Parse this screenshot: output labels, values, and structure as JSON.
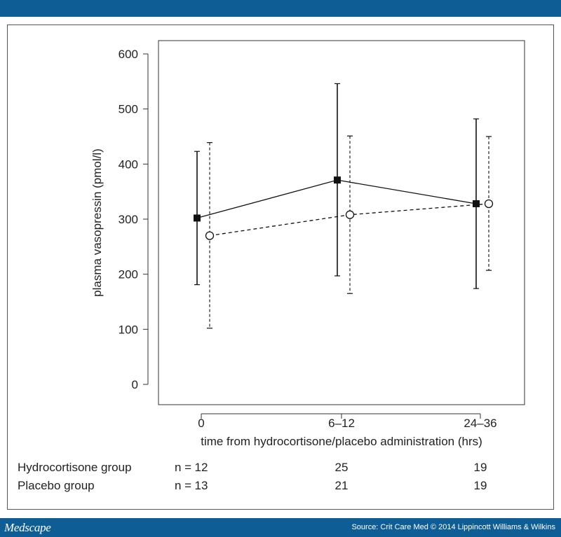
{
  "brand": "Medscape",
  "source": "Source: Crit Care Med © 2014 Lippincott Williams & Wilkins",
  "colors": {
    "header_bar": "#0f5d95",
    "footer_bar": "#0f5d95"
  },
  "chart_data": {
    "type": "line",
    "xlabel": "time from hydrocortisone/placebo administration (hrs)",
    "ylabel": "plasma vasopressin (pmol/l)",
    "categories": [
      "0",
      "6–12",
      "24–36"
    ],
    "ylim": [
      0,
      600
    ],
    "yticks": [
      0,
      100,
      200,
      300,
      400,
      500,
      600
    ],
    "grid": false,
    "series": [
      {
        "marker": "filled-square",
        "line_style": "solid",
        "values": [
          302,
          371,
          328
        ],
        "lower": [
          181,
          197,
          174
        ],
        "upper": [
          423,
          546,
          482
        ]
      },
      {
        "marker": "open-circle",
        "line_style": "dashed",
        "values": [
          270,
          308,
          328
        ],
        "lower": [
          102,
          165,
          207
        ],
        "upper": [
          439,
          451,
          450
        ]
      }
    ],
    "n_table": [
      {
        "group": "Hydrocortisone group",
        "n_label": "n =",
        "counts": [
          "12",
          "25",
          "19"
        ]
      },
      {
        "group": "Placebo group",
        "n_label": "n =",
        "counts": [
          "13",
          "21",
          "19"
        ]
      }
    ]
  }
}
